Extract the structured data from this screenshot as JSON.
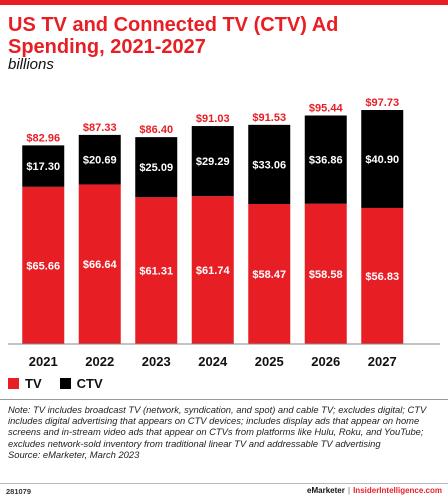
{
  "chart_data": {
    "type": "bar",
    "stacked": true,
    "title": "US TV and Connected TV (CTV) Ad Spending, 2021-2027",
    "subtitle": "billions",
    "categories": [
      "2021",
      "2022",
      "2023",
      "2024",
      "2025",
      "2026",
      "2027"
    ],
    "series": [
      {
        "name": "TV",
        "color": "#e81e25",
        "values": [
          65.66,
          66.64,
          61.31,
          61.74,
          58.47,
          58.58,
          56.83
        ],
        "labels": [
          "$65.66",
          "$66.64",
          "$61.31",
          "$61.74",
          "$58.47",
          "$58.58",
          "$56.83"
        ]
      },
      {
        "name": "CTV",
        "color": "#000000",
        "values": [
          17.3,
          20.69,
          25.09,
          29.29,
          33.06,
          36.86,
          40.9
        ],
        "labels": [
          "$17.30",
          "$20.69",
          "$25.09",
          "$29.29",
          "$33.06",
          "$36.86",
          "$40.90"
        ]
      }
    ],
    "totals": [
      82.96,
      87.33,
      86.4,
      91.03,
      91.53,
      95.44,
      97.73
    ],
    "total_labels": [
      "$82.96",
      "$87.33",
      "$86.40",
      "$91.03",
      "$91.53",
      "$95.44",
      "$97.73"
    ],
    "ylim": [
      0,
      104
    ],
    "legend_position": "bottom-left"
  },
  "note": "Note: TV includes broadcast TV (network, syndication, and spot) and cable TV; excludes digital; CTV includes digital advertising that appears on CTV devices; includes display ads that appear on home screens and in-stream video ads that appear on CTVs from platforms like Hulu, Roku, and YouTube; excludes network-sold inventory from traditional linear TV and addressable TV advertising",
  "source": "Source: eMarketer, March 2023",
  "footer": {
    "chart_id": "281079",
    "brand": "eMarketer",
    "separator": "|",
    "site": "InsiderIntelligence.com"
  }
}
